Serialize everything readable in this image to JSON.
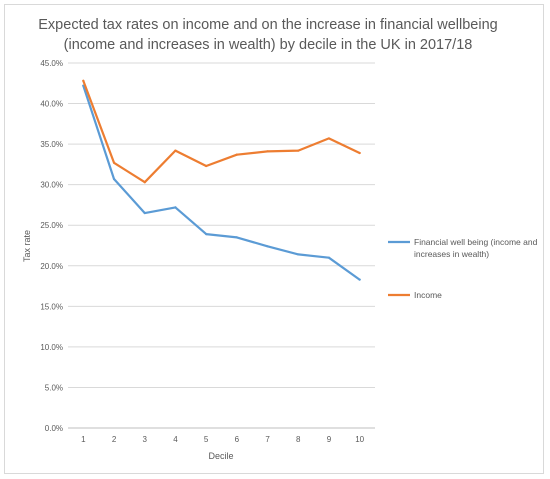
{
  "chart_data": {
    "type": "line",
    "title": [
      "Expected tax rates on income and on the increase in financial wellbeing",
      "(income and increases in wealth) by decile in the UK in 2017/18"
    ],
    "xlabel": "Decile",
    "ylabel": "Tax rate",
    "categories": [
      "1",
      "2",
      "3",
      "4",
      "5",
      "6",
      "7",
      "8",
      "9",
      "10"
    ],
    "ylim": [
      0,
      45
    ],
    "yticks": [
      "0.0%",
      "5.0%",
      "10.0%",
      "15.0%",
      "20.0%",
      "25.0%",
      "30.0%",
      "35.0%",
      "40.0%",
      "45.0%"
    ],
    "grid": true,
    "legend_position": "right",
    "series": [
      {
        "name": "Financial well being (income and increases in wealth)",
        "legend_lines": [
          "Financial well being (income and",
          "increases in wealth)"
        ],
        "color": "#5b9bd5",
        "values": [
          42.2,
          30.7,
          26.5,
          27.2,
          23.9,
          23.5,
          22.4,
          21.4,
          21.0,
          18.3
        ]
      },
      {
        "name": "Income",
        "legend_lines": [
          "Income"
        ],
        "color": "#ed7d31",
        "values": [
          42.8,
          32.7,
          30.3,
          34.2,
          32.3,
          33.7,
          34.1,
          34.2,
          35.7,
          33.9
        ]
      }
    ]
  }
}
